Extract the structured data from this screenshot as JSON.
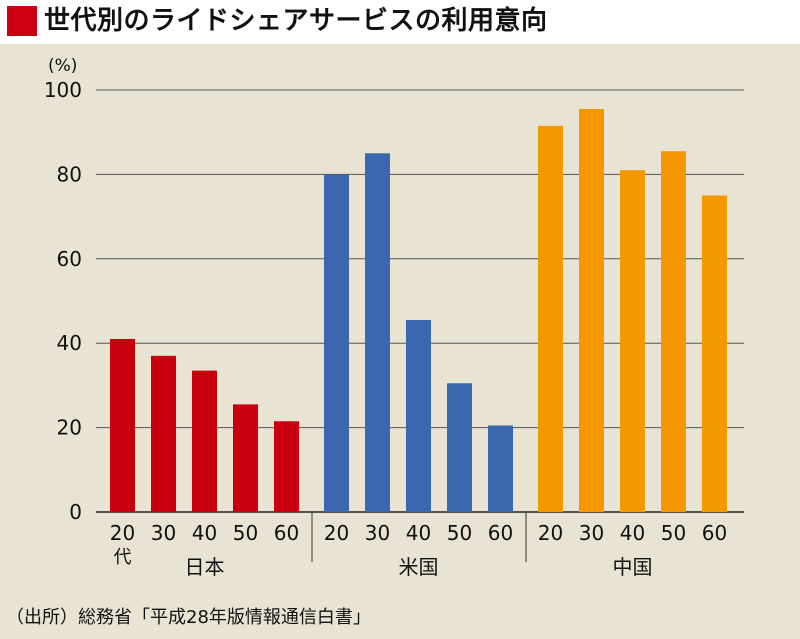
{
  "title": "世代別のライドシェアサービスの利用意向",
  "source": "（出所）総務省「平成28年版情報通信白書」",
  "colors": {
    "title_marker": "#cc0010",
    "background": "#e9e3d3",
    "grid": "#555555"
  },
  "chart_data": {
    "type": "bar",
    "unit_label": "(%)",
    "ylim": [
      0,
      100
    ],
    "yticks": [
      0,
      20,
      40,
      60,
      80,
      100
    ],
    "grid": true,
    "category_suffix": "代",
    "groups": [
      {
        "name": "日本",
        "color": "#c8000e",
        "categories": [
          "20",
          "30",
          "40",
          "50",
          "60"
        ],
        "values": [
          41,
          37,
          33.5,
          25.5,
          21.5
        ]
      },
      {
        "name": "米国",
        "color": "#3a67ad",
        "categories": [
          "20",
          "30",
          "40",
          "50",
          "60"
        ],
        "values": [
          80,
          85,
          45.5,
          30.5,
          20.5
        ]
      },
      {
        "name": "中国",
        "color": "#f39800",
        "categories": [
          "20",
          "30",
          "40",
          "50",
          "60"
        ],
        "values": [
          91.5,
          95.5,
          81,
          85.5,
          75
        ]
      }
    ]
  }
}
